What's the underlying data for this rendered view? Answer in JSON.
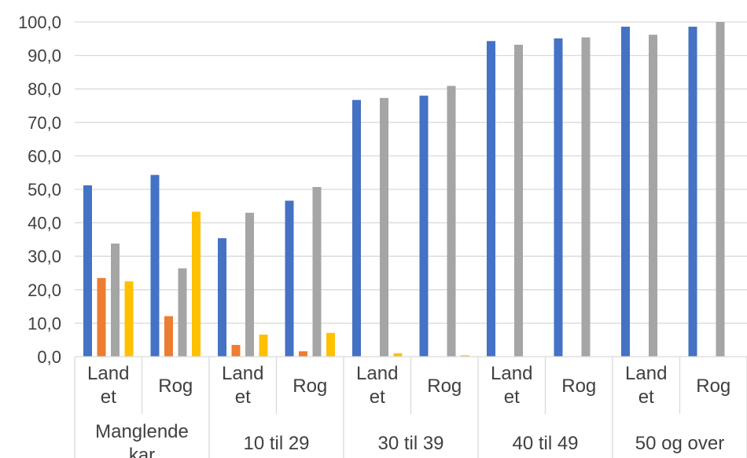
{
  "chart_data": {
    "type": "bar",
    "ylim": [
      0,
      100
    ],
    "y_ticks": [
      "0,0",
      "10,0",
      "20,0",
      "30,0",
      "40,0",
      "50,0",
      "60,0",
      "70,0",
      "80,0",
      "90,0",
      "100,0"
    ],
    "grid": true,
    "groups": [
      {
        "label": "Manglende kar",
        "categories": [
          [
            "Land",
            "et"
          ],
          [
            "Rog"
          ]
        ]
      },
      {
        "label": "10 til 29",
        "categories": [
          [
            "Land",
            "et"
          ],
          [
            "Rog"
          ]
        ]
      },
      {
        "label": "30 til 39",
        "categories": [
          [
            "Land",
            "et"
          ],
          [
            "Rog"
          ]
        ]
      },
      {
        "label": "40 til 49",
        "categories": [
          [
            "Land",
            "et"
          ],
          [
            "Rog"
          ]
        ]
      },
      {
        "label": "50 og over",
        "categories": [
          [
            "Land",
            "et"
          ],
          [
            "Rog"
          ]
        ]
      }
    ],
    "series": [
      {
        "color": "#4472C4",
        "values": [
          51.2,
          54.3,
          35.4,
          46.6,
          76.7,
          78.0,
          94.3,
          95.1,
          98.6,
          98.6
        ]
      },
      {
        "color": "#ED7D31",
        "values": [
          23.5,
          12.1,
          3.5,
          1.6,
          0,
          0,
          0,
          0,
          0,
          0
        ]
      },
      {
        "color": "#A5A5A5",
        "values": [
          33.8,
          26.4,
          43.0,
          50.7,
          77.3,
          80.9,
          93.2,
          95.4,
          96.2,
          100.0
        ]
      },
      {
        "color": "#FFC000",
        "values": [
          22.5,
          43.3,
          6.6,
          7.1,
          1.0,
          0.4,
          0,
          0,
          0,
          0
        ]
      }
    ]
  }
}
